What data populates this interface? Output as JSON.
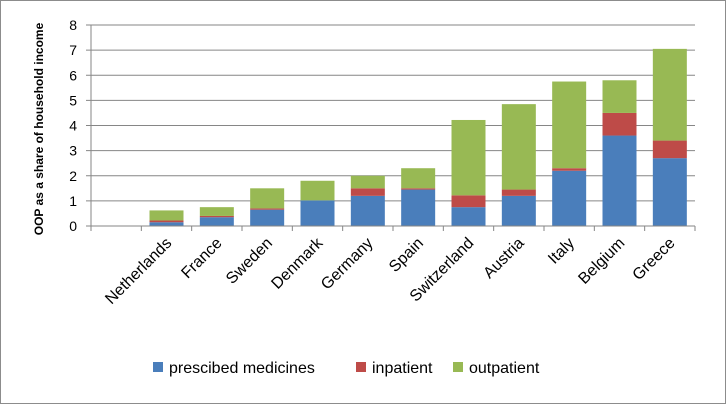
{
  "chart_data": {
    "type": "bar",
    "stacked": true,
    "title": "",
    "xlabel": "",
    "ylabel": "OOP as a share of household income",
    "ylim": [
      0,
      8
    ],
    "yticks": [
      "0",
      "1",
      "2",
      "3",
      "4",
      "5",
      "6",
      "7",
      "8"
    ],
    "grid": true,
    "legend_position": "bottom",
    "categories": [
      "",
      "Netherlands",
      "France",
      "Sweden",
      "Denmark",
      "Germany",
      "Spain",
      "Switzerland",
      "Austria",
      "Italy",
      "Belgium",
      "Greece"
    ],
    "series": [
      {
        "name": "prescibed medicines",
        "color": "#4a7ebb",
        "values": [
          0,
          0.15,
          0.35,
          0.65,
          1.02,
          1.2,
          1.45,
          0.75,
          1.2,
          2.2,
          3.6,
          2.7
        ]
      },
      {
        "name": "inpatient",
        "color": "#be4b48",
        "values": [
          0,
          0.07,
          0.05,
          0.05,
          0,
          0.3,
          0.05,
          0.47,
          0.25,
          0.1,
          0.9,
          0.7
        ]
      },
      {
        "name": "outpatient",
        "color": "#98b954",
        "values": [
          0,
          0.4,
          0.35,
          0.8,
          0.78,
          0.5,
          0.8,
          3.0,
          3.4,
          3.45,
          1.3,
          3.65
        ]
      }
    ]
  }
}
